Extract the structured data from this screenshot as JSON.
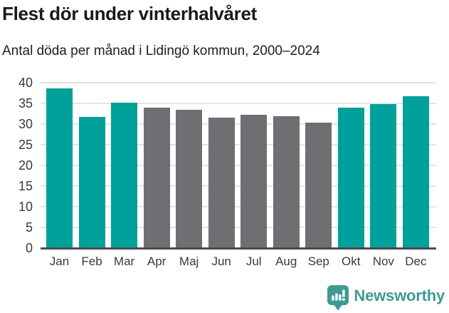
{
  "header": {
    "title": "Flest dör under vinterhalvåret",
    "subtitle": "Antal döda per månad i Lidingö kommun, 2000–2024"
  },
  "chart_data": {
    "type": "bar",
    "title": "Flest dör under vinterhalvåret",
    "subtitle": "Antal döda per månad i Lidingö kommun, 2000–2024",
    "categories": [
      "Jan",
      "Feb",
      "Mar",
      "Apr",
      "Maj",
      "Jun",
      "Jul",
      "Aug",
      "Sep",
      "Okt",
      "Nov",
      "Dec"
    ],
    "values": [
      38.6,
      31.8,
      35.2,
      34.0,
      33.5,
      31.5,
      32.3,
      31.9,
      30.3,
      33.9,
      34.9,
      36.8
    ],
    "bar_color_roles": [
      "highlight",
      "highlight",
      "highlight",
      "base",
      "base",
      "base",
      "base",
      "base",
      "base",
      "highlight",
      "highlight",
      "highlight"
    ],
    "highlighted_categories": [
      "Jan",
      "Feb",
      "Mar",
      "Okt",
      "Nov",
      "Dec"
    ],
    "xlabel": "",
    "ylabel": "",
    "ylim": [
      0,
      40
    ],
    "yticks": [
      0,
      5,
      10,
      15,
      20,
      25,
      30,
      35,
      40
    ],
    "grid": true,
    "legend": false
  },
  "colors": {
    "bar_highlight": "#00a19b",
    "bar_base": "#6e6e73",
    "gridline": "#e4e4e4",
    "axis_line": "#4d4d4d",
    "tick_label": "#3a3a3a",
    "title_text": "#191919",
    "logo": "#3f9a94"
  },
  "footer": {
    "logo_text": "Newsworthy"
  }
}
